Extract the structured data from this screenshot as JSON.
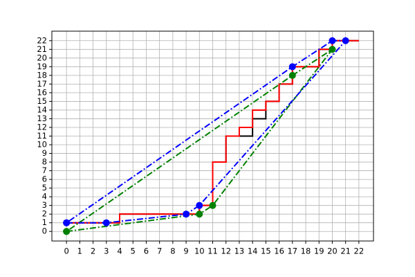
{
  "chart_data": {
    "type": "line",
    "xlim": [
      -1.1,
      23.1
    ],
    "ylim": [
      -1.1,
      23.1
    ],
    "xticks": [
      0,
      1,
      2,
      3,
      4,
      5,
      6,
      7,
      8,
      9,
      10,
      11,
      12,
      13,
      14,
      15,
      16,
      17,
      18,
      19,
      20,
      21,
      22
    ],
    "yticks": [
      0,
      1,
      2,
      3,
      4,
      5,
      6,
      7,
      8,
      9,
      10,
      11,
      12,
      13,
      14,
      15,
      16,
      17,
      18,
      19,
      20,
      21,
      22
    ],
    "grid": true,
    "series": [
      {
        "color": "#000000",
        "drawstyle": "steps-post",
        "linestyle": "solid",
        "x": [
          0,
          4,
          10,
          11,
          12,
          14,
          15,
          16,
          17,
          19,
          20,
          22
        ],
        "values": [
          1,
          2,
          3,
          8,
          11,
          13,
          15,
          17,
          19,
          21,
          22,
          22
        ]
      },
      {
        "color": "#ff0000",
        "drawstyle": "steps-post",
        "linestyle": "solid",
        "x": [
          0,
          4,
          10,
          11,
          12,
          13,
          14,
          15,
          16,
          17,
          19,
          20,
          22
        ],
        "values": [
          1,
          2,
          3,
          8,
          11,
          12,
          14,
          15,
          17,
          19,
          21,
          22,
          22
        ]
      },
      {
        "color": "#008000",
        "drawstyle": "default",
        "linestyle": "dashdot",
        "marker": "o",
        "x": [
          0,
          10,
          11,
          20,
          17,
          0
        ],
        "values": [
          0,
          2,
          3,
          21,
          18,
          0
        ]
      },
      {
        "color": "#0000ff",
        "drawstyle": "default",
        "linestyle": "dashdot",
        "marker": "o",
        "x": [
          0,
          3,
          9,
          10,
          21,
          20,
          17,
          0
        ],
        "values": [
          1,
          1,
          2,
          3,
          22,
          22,
          19,
          1
        ]
      }
    ]
  }
}
